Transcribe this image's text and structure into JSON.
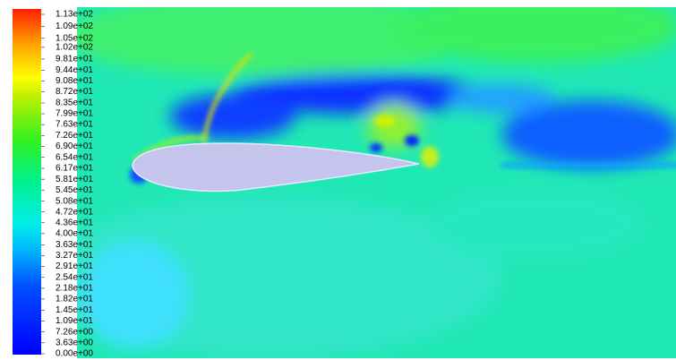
{
  "chart_data": {
    "type": "contour",
    "colorbar": {
      "clim": [
        0,
        113
      ],
      "ticks": [
        {
          "value": 113,
          "label": "1.13e+02"
        },
        {
          "value": 109,
          "label": "1.09e+02"
        },
        {
          "value": 105,
          "label": "1.05e+02"
        },
        {
          "value": 102,
          "label": "1.02e+02"
        },
        {
          "value": 98.1,
          "label": "9.81e+01"
        },
        {
          "value": 94.4,
          "label": "9.44e+01"
        },
        {
          "value": 90.8,
          "label": "9.08e+01"
        },
        {
          "value": 87.2,
          "label": "8.72e+01"
        },
        {
          "value": 83.5,
          "label": "8.35e+01"
        },
        {
          "value": 79.9,
          "label": "7.99e+01"
        },
        {
          "value": 76.3,
          "label": "7.63e+01"
        },
        {
          "value": 72.6,
          "label": "7.26e+01"
        },
        {
          "value": 69.0,
          "label": "6.90e+01"
        },
        {
          "value": 65.4,
          "label": "6.54e+01"
        },
        {
          "value": 61.7,
          "label": "6.17e+01"
        },
        {
          "value": 58.1,
          "label": "5.81e+01"
        },
        {
          "value": 54.5,
          "label": "5.45e+01"
        },
        {
          "value": 50.8,
          "label": "5.08e+01"
        },
        {
          "value": 47.2,
          "label": "4.72e+01"
        },
        {
          "value": 43.6,
          "label": "4.36e+01"
        },
        {
          "value": 40.0,
          "label": "4.00e+01"
        },
        {
          "value": 36.3,
          "label": "3.63e+01"
        },
        {
          "value": 32.7,
          "label": "3.27e+01"
        },
        {
          "value": 29.1,
          "label": "2.91e+01"
        },
        {
          "value": 25.4,
          "label": "2.54e+01"
        },
        {
          "value": 21.8,
          "label": "2.18e+01"
        },
        {
          "value": 18.2,
          "label": "1.82e+01"
        },
        {
          "value": 14.5,
          "label": "1.45e+01"
        },
        {
          "value": 10.9,
          "label": "1.09e+01"
        },
        {
          "value": 7.26,
          "label": "7.26e+00"
        },
        {
          "value": 3.63,
          "label": "3.63e+00"
        },
        {
          "value": 0,
          "label": "0.00e+00"
        }
      ]
    }
  }
}
